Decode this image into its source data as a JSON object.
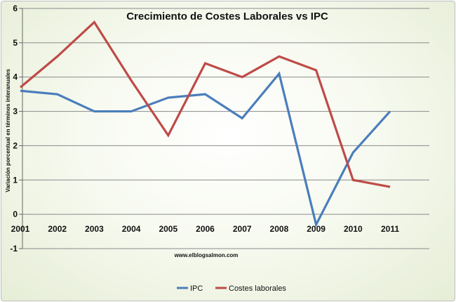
{
  "chart_data": {
    "type": "line",
    "title": "Crecimiento de Costes Laborales vs IPC",
    "ylabel": "Variación porcentual en términos interanuales",
    "xlabel": "",
    "source_text": "www.elblogsalmon.com",
    "categories": [
      "2001",
      "2002",
      "2003",
      "2004",
      "2005",
      "2006",
      "2007",
      "2008",
      "2009",
      "2010",
      "2011"
    ],
    "ylim": [
      -1,
      6
    ],
    "yticks": [
      "-1",
      "0",
      "1",
      "2",
      "3",
      "4",
      "5",
      "6"
    ],
    "grid": "horizontal",
    "legend_position": "bottom",
    "series": [
      {
        "name": "IPC",
        "color": "#4a7ebb",
        "values": [
          3.6,
          3.5,
          3.0,
          3.0,
          3.4,
          3.5,
          2.8,
          4.1,
          -0.3,
          1.8,
          3.0
        ]
      },
      {
        "name": "Costes laborales",
        "color": "#be4b48",
        "values": [
          3.7,
          4.6,
          5.6,
          3.9,
          2.3,
          4.4,
          4.0,
          4.6,
          4.2,
          1.0,
          0.8
        ]
      }
    ]
  }
}
